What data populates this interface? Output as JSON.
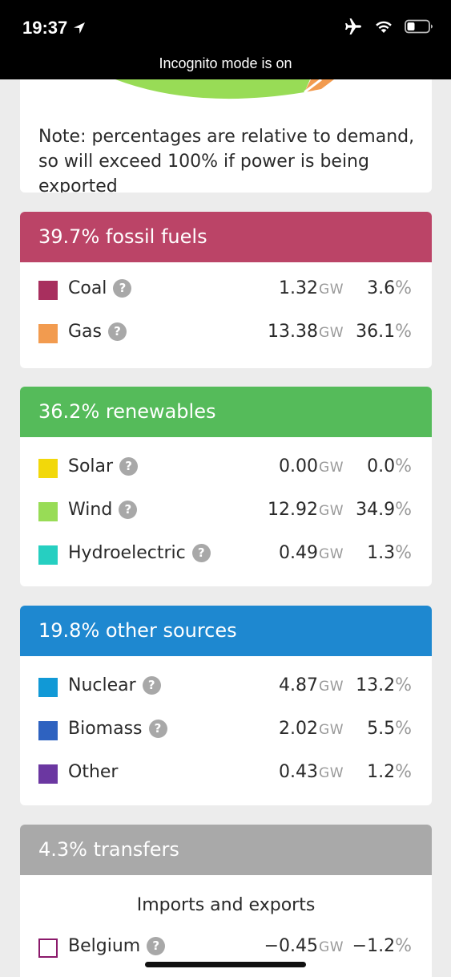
{
  "status_bar": {
    "time": "19:37",
    "incognito_text": "Incognito mode is on"
  },
  "pie_note": {
    "text": "Note: percentages are relative to demand, so will exceed 100% if power is being exported"
  },
  "groups": [
    {
      "title": "39.7% fossil fuels",
      "color": "#bb4467",
      "rows": [
        {
          "name": "Coal",
          "color": "#a82f5e",
          "help": "?",
          "gw": "1.32",
          "gw_unit": "GW",
          "pct": "3.6",
          "pct_unit": "%"
        },
        {
          "name": "Gas",
          "color": "#f29b4f",
          "help": "?",
          "gw": "13.38",
          "gw_unit": "GW",
          "pct": "36.1",
          "pct_unit": "%"
        }
      ]
    },
    {
      "title": "36.2% renewables",
      "color": "#55bb5a",
      "rows": [
        {
          "name": "Solar",
          "color": "#f2d80a",
          "help": "?",
          "gw": "0.00",
          "gw_unit": "GW",
          "pct": "0.0",
          "pct_unit": "%"
        },
        {
          "name": "Wind",
          "color": "#98dc56",
          "help": "?",
          "gw": "12.92",
          "gw_unit": "GW",
          "pct": "34.9",
          "pct_unit": "%"
        },
        {
          "name": "Hydroelectric",
          "color": "#26cfc1",
          "help": "?",
          "gw": "0.49",
          "gw_unit": "GW",
          "pct": "1.3",
          "pct_unit": "%"
        }
      ]
    },
    {
      "title": "19.8% other sources",
      "color": "#1e88d0",
      "rows": [
        {
          "name": "Nuclear",
          "color": "#1199d6",
          "help": "?",
          "gw": "4.87",
          "gw_unit": "GW",
          "pct": "13.2",
          "pct_unit": "%"
        },
        {
          "name": "Biomass",
          "color": "#2e62c0",
          "help": "?",
          "gw": "2.02",
          "gw_unit": "GW",
          "pct": "5.5",
          "pct_unit": "%"
        },
        {
          "name": "Other",
          "color": "#6b37a1",
          "help": "",
          "gw": "0.43",
          "gw_unit": "GW",
          "pct": "1.2",
          "pct_unit": "%"
        }
      ]
    }
  ],
  "transfers": {
    "title": "4.3% transfers",
    "color": "#a9a9a9",
    "subheading": "Imports and exports",
    "rows": [
      {
        "name": "Belgium",
        "color": "#8b1a6b",
        "help": "?",
        "gw": "−0.45",
        "gw_unit": "GW",
        "pct": "−1.2",
        "pct_unit": "%"
      }
    ]
  },
  "pie_colors": {
    "wind": "#98dc56",
    "gas": "#f29b4f"
  }
}
